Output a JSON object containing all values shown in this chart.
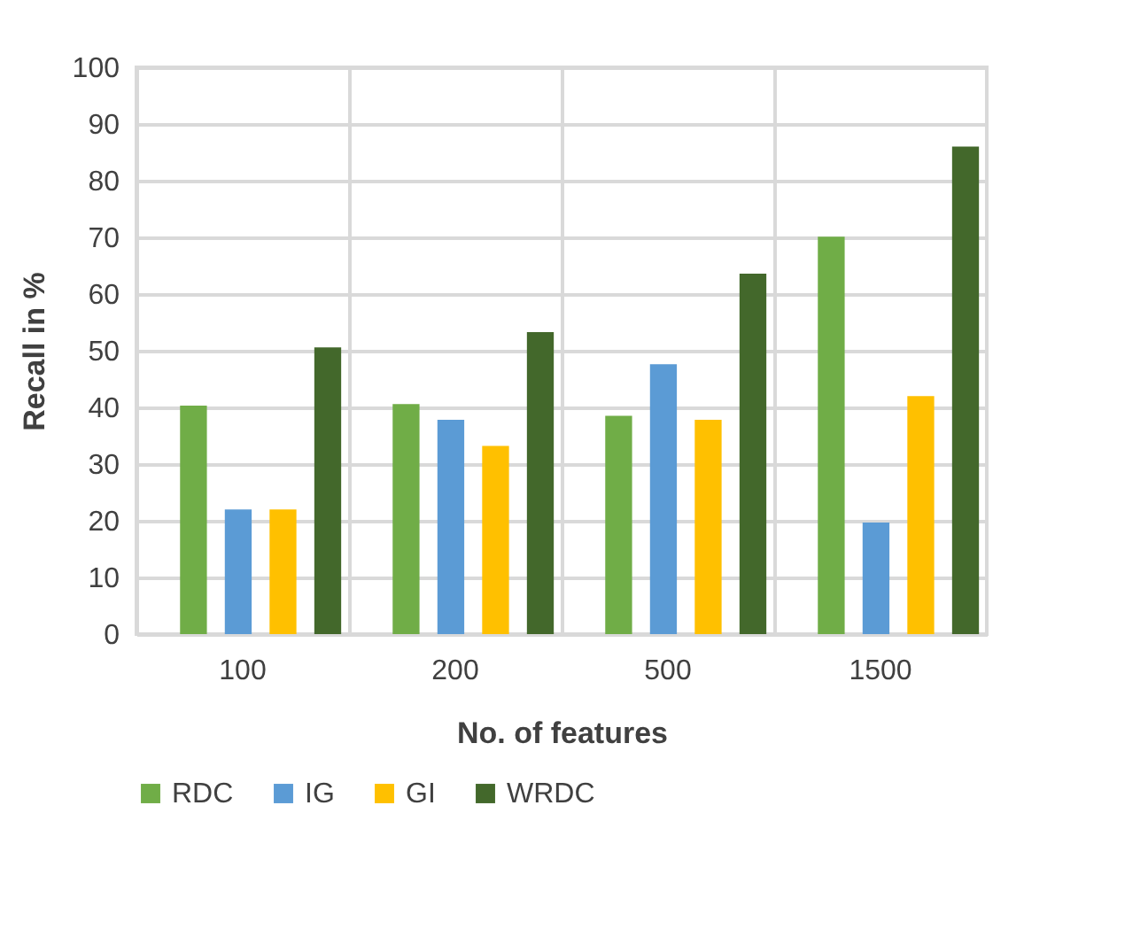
{
  "chart_data": {
    "type": "bar",
    "xlabel": "No. of features",
    "ylabel": "Recall in %",
    "categories": [
      "100",
      "200",
      "500",
      "1500"
    ],
    "series": [
      {
        "name": "RDC",
        "color": "#70ad47",
        "values": [
          40.3,
          40.6,
          38.5,
          70.1
        ]
      },
      {
        "name": "IG",
        "color": "#5b9bd5",
        "values": [
          22.0,
          37.8,
          47.6,
          19.7
        ]
      },
      {
        "name": "GI",
        "color": "#ffc000",
        "values": [
          22.0,
          33.2,
          37.8,
          42.0
        ]
      },
      {
        "name": "WRDC",
        "color": "#43682b",
        "values": [
          50.6,
          53.3,
          63.6,
          86.0
        ]
      }
    ],
    "ylim": [
      0,
      100
    ],
    "yticks": [
      0,
      10,
      20,
      30,
      40,
      50,
      60,
      70,
      80,
      90,
      100
    ],
    "grid": true,
    "legend": "bottom"
  }
}
